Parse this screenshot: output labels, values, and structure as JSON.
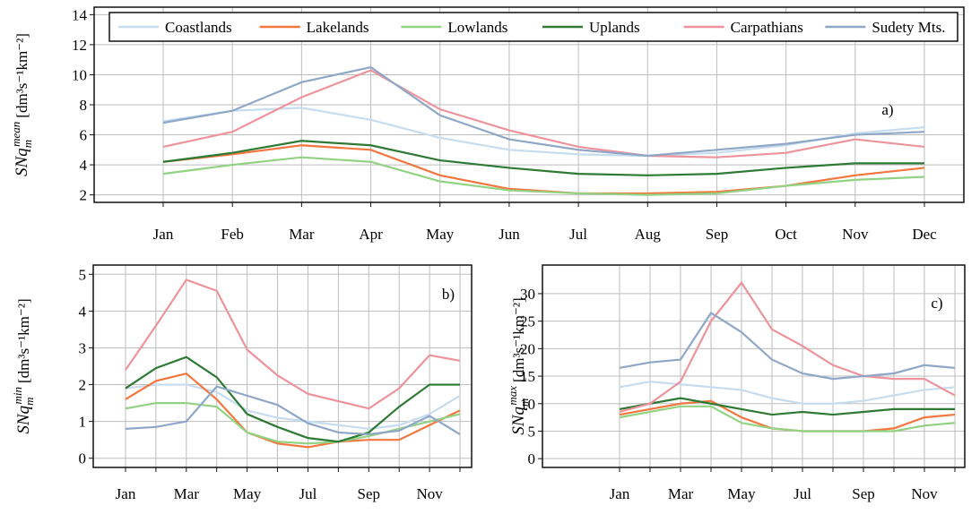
{
  "chart_data": [
    {
      "type": "line",
      "annotation": "a)",
      "legend": "top",
      "grid": true,
      "ylabel": {
        "base": "SNq",
        "sub": "m",
        "sup": "mean",
        "unit": "[dm³s⁻¹km⁻²]"
      },
      "categories": [
        "Jan",
        "Feb",
        "Mar",
        "Apr",
        "May",
        "Jun",
        "Jul",
        "Aug",
        "Sep",
        "Oct",
        "Nov",
        "Dec"
      ],
      "ylim": [
        1.5,
        14.5
      ],
      "yticks": [
        2,
        4,
        6,
        8,
        10,
        12,
        14
      ],
      "series": [
        {
          "name": "Coastlands",
          "color": "#c6dcef",
          "values": [
            6.9,
            7.6,
            7.8,
            7.0,
            5.8,
            5.0,
            4.7,
            4.6,
            4.8,
            5.3,
            6.1,
            6.5
          ]
        },
        {
          "name": "Lakelands",
          "color": "#f2763e",
          "values": [
            4.2,
            4.7,
            5.3,
            5.0,
            3.3,
            2.4,
            2.1,
            2.1,
            2.2,
            2.6,
            3.3,
            3.8
          ]
        },
        {
          "name": "Lowlands",
          "color": "#92d283",
          "values": [
            3.4,
            4.0,
            4.5,
            4.2,
            2.9,
            2.3,
            2.1,
            2.0,
            2.1,
            2.6,
            3.0,
            3.2
          ]
        },
        {
          "name": "Uplands",
          "color": "#2e7a34",
          "values": [
            4.2,
            4.8,
            5.6,
            5.3,
            4.3,
            3.8,
            3.4,
            3.3,
            3.4,
            3.8,
            4.1,
            4.1
          ]
        },
        {
          "name": "Carpathians",
          "color": "#ee939b",
          "values": [
            5.2,
            6.2,
            8.5,
            10.3,
            7.7,
            6.3,
            5.2,
            4.6,
            4.5,
            4.8,
            5.7,
            5.2
          ]
        },
        {
          "name": "Sudety Mts.",
          "color": "#8fa7c7",
          "values": [
            6.8,
            7.6,
            9.5,
            10.5,
            7.3,
            5.7,
            5.0,
            4.6,
            5.0,
            5.4,
            6.0,
            6.2
          ]
        }
      ]
    },
    {
      "type": "line",
      "annotation": "b)",
      "grid": true,
      "ylabel": {
        "base": "SNq",
        "sub": "m",
        "sup": "min",
        "unit": "[dm³s⁻¹km⁻²]"
      },
      "categories": [
        "Jan",
        null,
        "Mar",
        null,
        "May",
        null,
        "Jul",
        null,
        "Sep",
        null,
        "Nov",
        null
      ],
      "ylim": [
        -0.25,
        5.25
      ],
      "yticks": [
        0,
        1,
        2,
        3,
        4,
        5
      ],
      "series": [
        {
          "color": "#c6dcef",
          "values": [
            1.9,
            2.0,
            2.0,
            1.8,
            1.3,
            1.1,
            1.0,
            0.9,
            0.8,
            0.9,
            1.2,
            1.7
          ]
        },
        {
          "color": "#f2763e",
          "values": [
            1.6,
            2.1,
            2.3,
            1.6,
            0.7,
            0.4,
            0.3,
            0.45,
            0.5,
            0.5,
            0.9,
            1.3
          ]
        },
        {
          "color": "#92d283",
          "values": [
            1.35,
            1.5,
            1.5,
            1.4,
            0.7,
            0.45,
            0.4,
            0.45,
            0.6,
            0.8,
            1.0,
            1.2
          ]
        },
        {
          "color": "#2e7a34",
          "values": [
            1.9,
            2.45,
            2.75,
            2.2,
            1.2,
            0.85,
            0.55,
            0.45,
            0.7,
            1.4,
            2.0,
            2.0
          ]
        },
        {
          "color": "#ee939b",
          "values": [
            2.4,
            3.6,
            4.85,
            4.55,
            2.95,
            2.25,
            1.75,
            1.55,
            1.35,
            1.9,
            2.8,
            2.65
          ]
        },
        {
          "color": "#8fa7c7",
          "values": [
            0.8,
            0.85,
            1.0,
            1.95,
            1.7,
            1.45,
            0.95,
            0.7,
            0.65,
            0.75,
            1.15,
            0.65
          ]
        }
      ]
    },
    {
      "type": "line",
      "annotation": "c)",
      "grid": true,
      "ylabel": {
        "base": "SNq",
        "sub": "m",
        "sup": "max",
        "unit": "[dm³s⁻¹km⁻²]"
      },
      "categories": [
        "Jan",
        null,
        "Mar",
        null,
        "May",
        null,
        "Jul",
        null,
        "Sep",
        null,
        "Nov",
        null
      ],
      "ylim": [
        -1.6,
        35.2
      ],
      "yticks": [
        0,
        5,
        10,
        15,
        20,
        25,
        30
      ],
      "series": [
        {
          "color": "#c6dcef",
          "values": [
            13,
            14,
            13.5,
            13,
            12.5,
            11,
            10,
            10,
            10.5,
            11.5,
            12.5,
            13
          ]
        },
        {
          "color": "#f2763e",
          "values": [
            8,
            9,
            10,
            10.5,
            7.5,
            5.5,
            5,
            5,
            5,
            5.5,
            7.5,
            8
          ]
        },
        {
          "color": "#92d283",
          "values": [
            7.5,
            8.5,
            9.5,
            9.5,
            6.5,
            5.5,
            5,
            5,
            5,
            5,
            6,
            6.5
          ]
        },
        {
          "color": "#2e7a34",
          "values": [
            9,
            10,
            11,
            10,
            9,
            8,
            8.5,
            8,
            8.5,
            9,
            9,
            9
          ]
        },
        {
          "color": "#ee939b",
          "values": [
            8.5,
            10,
            14,
            25,
            32,
            23.5,
            20.5,
            17,
            15,
            14.5,
            14.5,
            11.5
          ]
        },
        {
          "color": "#8fa7c7",
          "values": [
            16.5,
            17.5,
            18,
            26.5,
            23,
            18,
            15.5,
            14.5,
            15,
            15.5,
            17,
            16.5
          ]
        }
      ]
    }
  ]
}
